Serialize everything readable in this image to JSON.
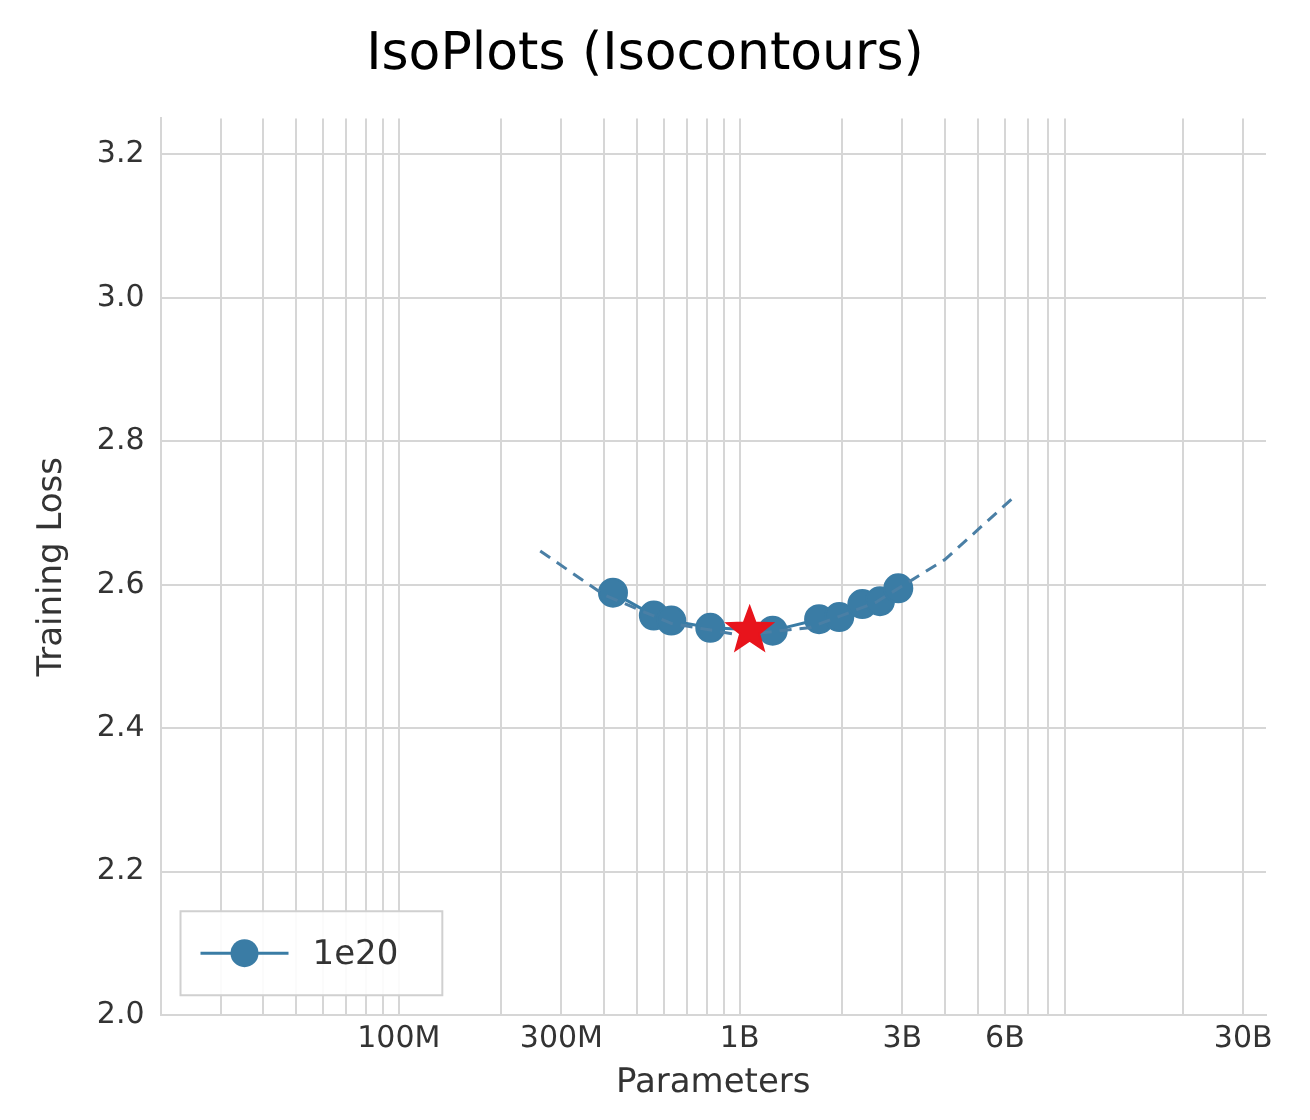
{
  "chart_data": {
    "type": "line",
    "title": "IsoPlots (Isocontours)",
    "xlabel": "Parameters",
    "ylabel": "Training Loss",
    "log": "x",
    "grid": true,
    "legend": "bottom left",
    "xlim": [
      20000000,
      35000000000
    ],
    "xticks": [
      {
        "value": 30000000,
        "label": null
      },
      {
        "value": 40000000,
        "label": null
      },
      {
        "value": 50000000,
        "label": null
      },
      {
        "value": 60000000,
        "label": null
      },
      {
        "value": 70000000,
        "label": null
      },
      {
        "value": 80000000,
        "label": null
      },
      {
        "value": 90000000,
        "label": null
      },
      {
        "value": 100000000,
        "label": "100M"
      },
      {
        "value": 200000000,
        "label": null
      },
      {
        "value": 300000000,
        "label": "300M"
      },
      {
        "value": 400000000,
        "label": null
      },
      {
        "value": 500000000,
        "label": null
      },
      {
        "value": 600000000,
        "label": null
      },
      {
        "value": 700000000,
        "label": null
      },
      {
        "value": 800000000,
        "label": null
      },
      {
        "value": 900000000,
        "label": null
      },
      {
        "value": 1000000000,
        "label": "1B"
      },
      {
        "value": 2000000000,
        "label": null
      },
      {
        "value": 3000000000,
        "label": "3B"
      },
      {
        "value": 4000000000,
        "label": null
      },
      {
        "value": 5000000000,
        "label": null
      },
      {
        "value": 6000000000,
        "label": "6B"
      },
      {
        "value": 7000000000,
        "label": null
      },
      {
        "value": 8000000000,
        "label": null
      },
      {
        "value": 9000000000,
        "label": null
      },
      {
        "value": 20000000000,
        "label": null
      },
      {
        "value": 30000000000,
        "label": "30B"
      }
    ],
    "ylim": [
      2.0,
      3.25
    ],
    "yticks": [
      {
        "value": 2.0,
        "label": "2.0"
      },
      2.2,
      2.4,
      2.6,
      2.8,
      {
        "value": 3.0,
        "label": "3.0"
      },
      3.2
    ],
    "series": [
      {
        "line_style": "dashed",
        "marker": "none",
        "color": "#4a7fa5",
        "x": [
          260000000,
          400000000,
          630000000,
          1000000000,
          1600000000,
          2500000000,
          4000000000,
          6300000000
        ],
        "values": [
          2.647,
          2.586,
          2.546,
          2.53,
          2.54,
          2.575,
          2.635,
          2.72
        ]
      },
      {
        "name": "1e20",
        "line_style": "solid",
        "marker": "circle",
        "color": "#3a7ca5",
        "x": [
          425000000,
          560000000,
          630000000,
          820000000,
          1250000000,
          1710000000,
          1960000000,
          2290000000,
          2580000000,
          2920000000
        ],
        "values": [
          2.589,
          2.557,
          2.55,
          2.54,
          2.536,
          2.552,
          2.555,
          2.573,
          2.577,
          2.595
        ]
      },
      {
        "type": "scatter",
        "marker": "star",
        "color": "#e8141c",
        "x": [
          1070000000
        ],
        "values": [
          2.536
        ]
      }
    ]
  }
}
